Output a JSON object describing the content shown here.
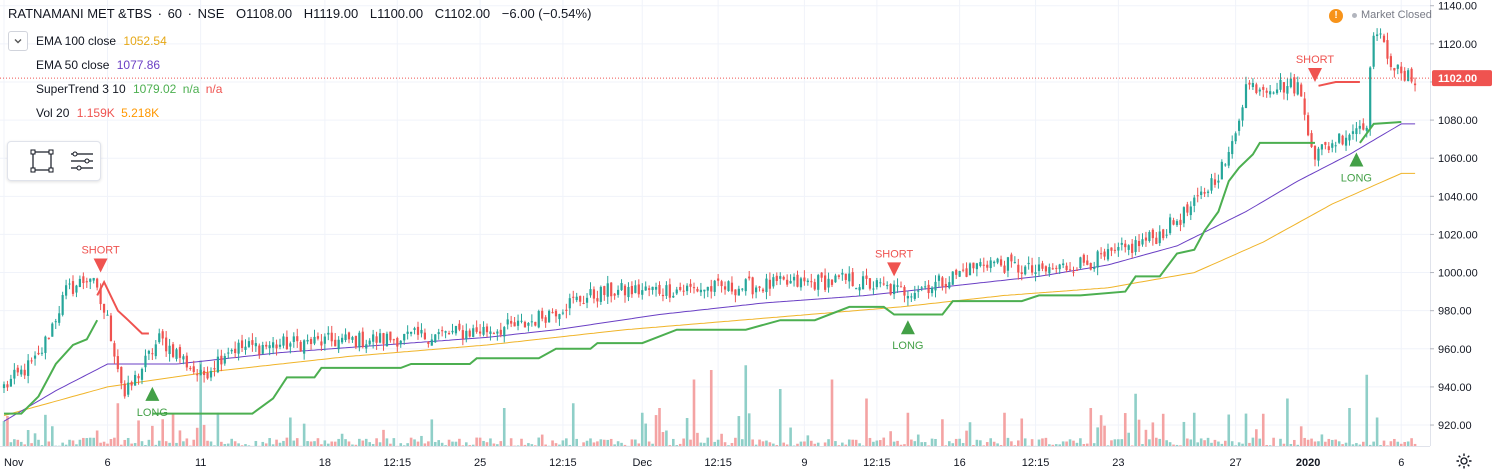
{
  "header": {
    "symbol": "RATNAMANI MET &TBS",
    "interval": "60",
    "exchange": "NSE",
    "open": "O1108.00",
    "high": "H1119.00",
    "low": "L1100.00",
    "close": "C1102.00",
    "change": "−6.00 (−0.54%)"
  },
  "indicators": {
    "ema100": {
      "name": "EMA 100 close",
      "value": "1052.54",
      "color": "#f0b429"
    },
    "ema50": {
      "name": "EMA 50 close",
      "value": "1077.86",
      "color": "#6a3fc4"
    },
    "supertrend": {
      "name": "SuperTrend 3 10",
      "value": "1079.02",
      "na1": "n/a",
      "na2": "n/a",
      "up_color": "#4caf50",
      "down_color": "#ef5350"
    },
    "volume": {
      "name": "Vol 20",
      "value": "1.159K",
      "ma": "5.218K",
      "value_color": "#ef5350",
      "ma_color": "#ff9800"
    }
  },
  "market_status": "Market Closed",
  "colors": {
    "up": "#26a69a",
    "down": "#ef5350",
    "vol_up": "#8fcfc8",
    "vol_down": "#f4a3a3"
  },
  "icons": [
    "chevron-down-icon",
    "rectangle-tool-icon",
    "list-tool-icon",
    "warning-icon",
    "gear-icon"
  ],
  "chart_data": {
    "type": "candlestick",
    "y_ticks": [
      "1140.00",
      "1120.00",
      "1100.00",
      "1080.00",
      "1060.00",
      "1040.00",
      "1020.00",
      "1000.00",
      "980.00",
      "960.00",
      "940.00",
      "920.00"
    ],
    "ylim": [
      909,
      1143
    ],
    "last_price_label": "1102.00",
    "last_price": 1102,
    "x_labels": [
      {
        "label": "Nov",
        "i": 0
      },
      {
        "label": "6",
        "i": 30
      },
      {
        "label": "11",
        "i": 57
      },
      {
        "label": "18",
        "i": 93
      },
      {
        "label": "12:15",
        "i": 114
      },
      {
        "label": "25",
        "i": 138
      },
      {
        "label": "12:15",
        "i": 162
      },
      {
        "label": "Dec",
        "i": 185
      },
      {
        "label": "12:15",
        "i": 207
      },
      {
        "label": "9",
        "i": 232
      },
      {
        "label": "12:15",
        "i": 253
      },
      {
        "label": "16",
        "i": 277
      },
      {
        "label": "12:15",
        "i": 299
      },
      {
        "label": "23",
        "i": 323
      },
      {
        "label": "27",
        "i": 357
      },
      {
        "label": "2020",
        "i": 378
      },
      {
        "label": "6",
        "i": 405
      }
    ],
    "close_anchors": [
      [
        0,
        940
      ],
      [
        10,
        955
      ],
      [
        18,
        990
      ],
      [
        25,
        998
      ],
      [
        30,
        975
      ],
      [
        35,
        935
      ],
      [
        45,
        965
      ],
      [
        50,
        958
      ],
      [
        57,
        945
      ],
      [
        65,
        960
      ],
      [
        85,
        963
      ],
      [
        95,
        964
      ],
      [
        110,
        965
      ],
      [
        130,
        968
      ],
      [
        150,
        972
      ],
      [
        165,
        985
      ],
      [
        175,
        990
      ],
      [
        210,
        992
      ],
      [
        245,
        996
      ],
      [
        260,
        990
      ],
      [
        270,
        994
      ],
      [
        285,
        1006
      ],
      [
        300,
        1000
      ],
      [
        320,
        1008
      ],
      [
        335,
        1020
      ],
      [
        345,
        1035
      ],
      [
        355,
        1060
      ],
      [
        360,
        1098
      ],
      [
        375,
        1098
      ],
      [
        380,
        1062
      ],
      [
        395,
        1080
      ],
      [
        397,
        1128
      ],
      [
        405,
        1102
      ]
    ],
    "ema50_anchors": [
      [
        0,
        922
      ],
      [
        15,
        938
      ],
      [
        30,
        952
      ],
      [
        50,
        952
      ],
      [
        80,
        958
      ],
      [
        110,
        962
      ],
      [
        140,
        966
      ],
      [
        160,
        970
      ],
      [
        190,
        978
      ],
      [
        220,
        984
      ],
      [
        250,
        988
      ],
      [
        280,
        994
      ],
      [
        300,
        998
      ],
      [
        320,
        1004
      ],
      [
        340,
        1014
      ],
      [
        360,
        1032
      ],
      [
        375,
        1048
      ],
      [
        390,
        1062
      ],
      [
        405,
        1078
      ]
    ],
    "ema100_anchors": [
      [
        0,
        925
      ],
      [
        30,
        940
      ],
      [
        60,
        948
      ],
      [
        100,
        956
      ],
      [
        140,
        962
      ],
      [
        180,
        970
      ],
      [
        220,
        976
      ],
      [
        260,
        982
      ],
      [
        290,
        988
      ],
      [
        320,
        992
      ],
      [
        345,
        1000
      ],
      [
        365,
        1016
      ],
      [
        385,
        1036
      ],
      [
        405,
        1052
      ]
    ],
    "supertrend_segments": [
      {
        "trend": "up",
        "points": [
          [
            0,
            926
          ],
          [
            5,
            926
          ],
          [
            10,
            935
          ],
          [
            15,
            952
          ],
          [
            20,
            962
          ],
          [
            24,
            965
          ],
          [
            27,
            975
          ]
        ]
      },
      {
        "trend": "down",
        "points": [
          [
            27,
            988
          ],
          [
            29,
            995
          ],
          [
            33,
            980
          ],
          [
            36,
            975
          ],
          [
            40,
            968
          ],
          [
            42,
            968
          ]
        ]
      },
      {
        "trend": "up",
        "points": [
          [
            43,
            926
          ],
          [
            60,
            926
          ],
          [
            72,
            926
          ],
          [
            78,
            934
          ],
          [
            82,
            945
          ],
          [
            90,
            945
          ],
          [
            92,
            950
          ],
          [
            115,
            950
          ],
          [
            118,
            952
          ],
          [
            135,
            952
          ],
          [
            137,
            955
          ],
          [
            155,
            955
          ],
          [
            160,
            960
          ],
          [
            170,
            960
          ],
          [
            172,
            963
          ],
          [
            185,
            963
          ],
          [
            195,
            970
          ],
          [
            215,
            970
          ],
          [
            225,
            975
          ],
          [
            235,
            975
          ],
          [
            245,
            982
          ],
          [
            255,
            982
          ],
          [
            258,
            978
          ],
          [
            272,
            978
          ],
          [
            275,
            985
          ],
          [
            295,
            985
          ],
          [
            300,
            988
          ],
          [
            312,
            988
          ],
          [
            325,
            990
          ],
          [
            328,
            998
          ],
          [
            335,
            998
          ],
          [
            340,
            1010
          ],
          [
            345,
            1012
          ],
          [
            348,
            1022
          ],
          [
            352,
            1032
          ],
          [
            355,
            1048
          ],
          [
            358,
            1055
          ],
          [
            362,
            1062
          ],
          [
            364,
            1068
          ],
          [
            380,
            1068
          ]
        ]
      },
      {
        "trend": "down",
        "points": [
          [
            381,
            1098
          ],
          [
            386,
            1100
          ],
          [
            392,
            1100
          ],
          [
            393,
            1100
          ]
        ]
      },
      {
        "trend": "up",
        "points": [
          [
            393,
            1068
          ],
          [
            397,
            1078
          ],
          [
            405,
            1079
          ]
        ]
      }
    ],
    "signals": [
      {
        "type": "short",
        "label": "SHORT",
        "i": 28,
        "price": 1000
      },
      {
        "type": "long",
        "label": "LONG",
        "i": 43,
        "price": 940
      },
      {
        "type": "short",
        "label": "SHORT",
        "i": 258,
        "price": 998
      },
      {
        "type": "long",
        "label": "LONG",
        "i": 262,
        "price": 975
      },
      {
        "type": "short",
        "label": "SHORT",
        "i": 380,
        "price": 1100
      },
      {
        "type": "long",
        "label": "LONG",
        "i": 392,
        "price": 1063
      }
    ],
    "volume_spikes": [
      [
        33,
        0.45
      ],
      [
        57,
        0.9
      ],
      [
        62,
        0.35
      ],
      [
        83,
        0.3
      ],
      [
        145,
        0.4
      ],
      [
        165,
        0.45
      ],
      [
        185,
        0.35
      ],
      [
        190,
        0.4
      ],
      [
        200,
        0.7
      ],
      [
        205,
        0.8
      ],
      [
        215,
        0.85
      ],
      [
        225,
        0.6
      ],
      [
        240,
        0.7
      ],
      [
        250,
        0.5
      ],
      [
        262,
        0.35
      ],
      [
        290,
        0.35
      ],
      [
        315,
        0.4
      ],
      [
        328,
        0.55
      ],
      [
        345,
        0.35
      ],
      [
        372,
        0.5
      ],
      [
        390,
        0.4
      ],
      [
        395,
        0.75
      ],
      [
        398,
        0.3
      ]
    ]
  }
}
